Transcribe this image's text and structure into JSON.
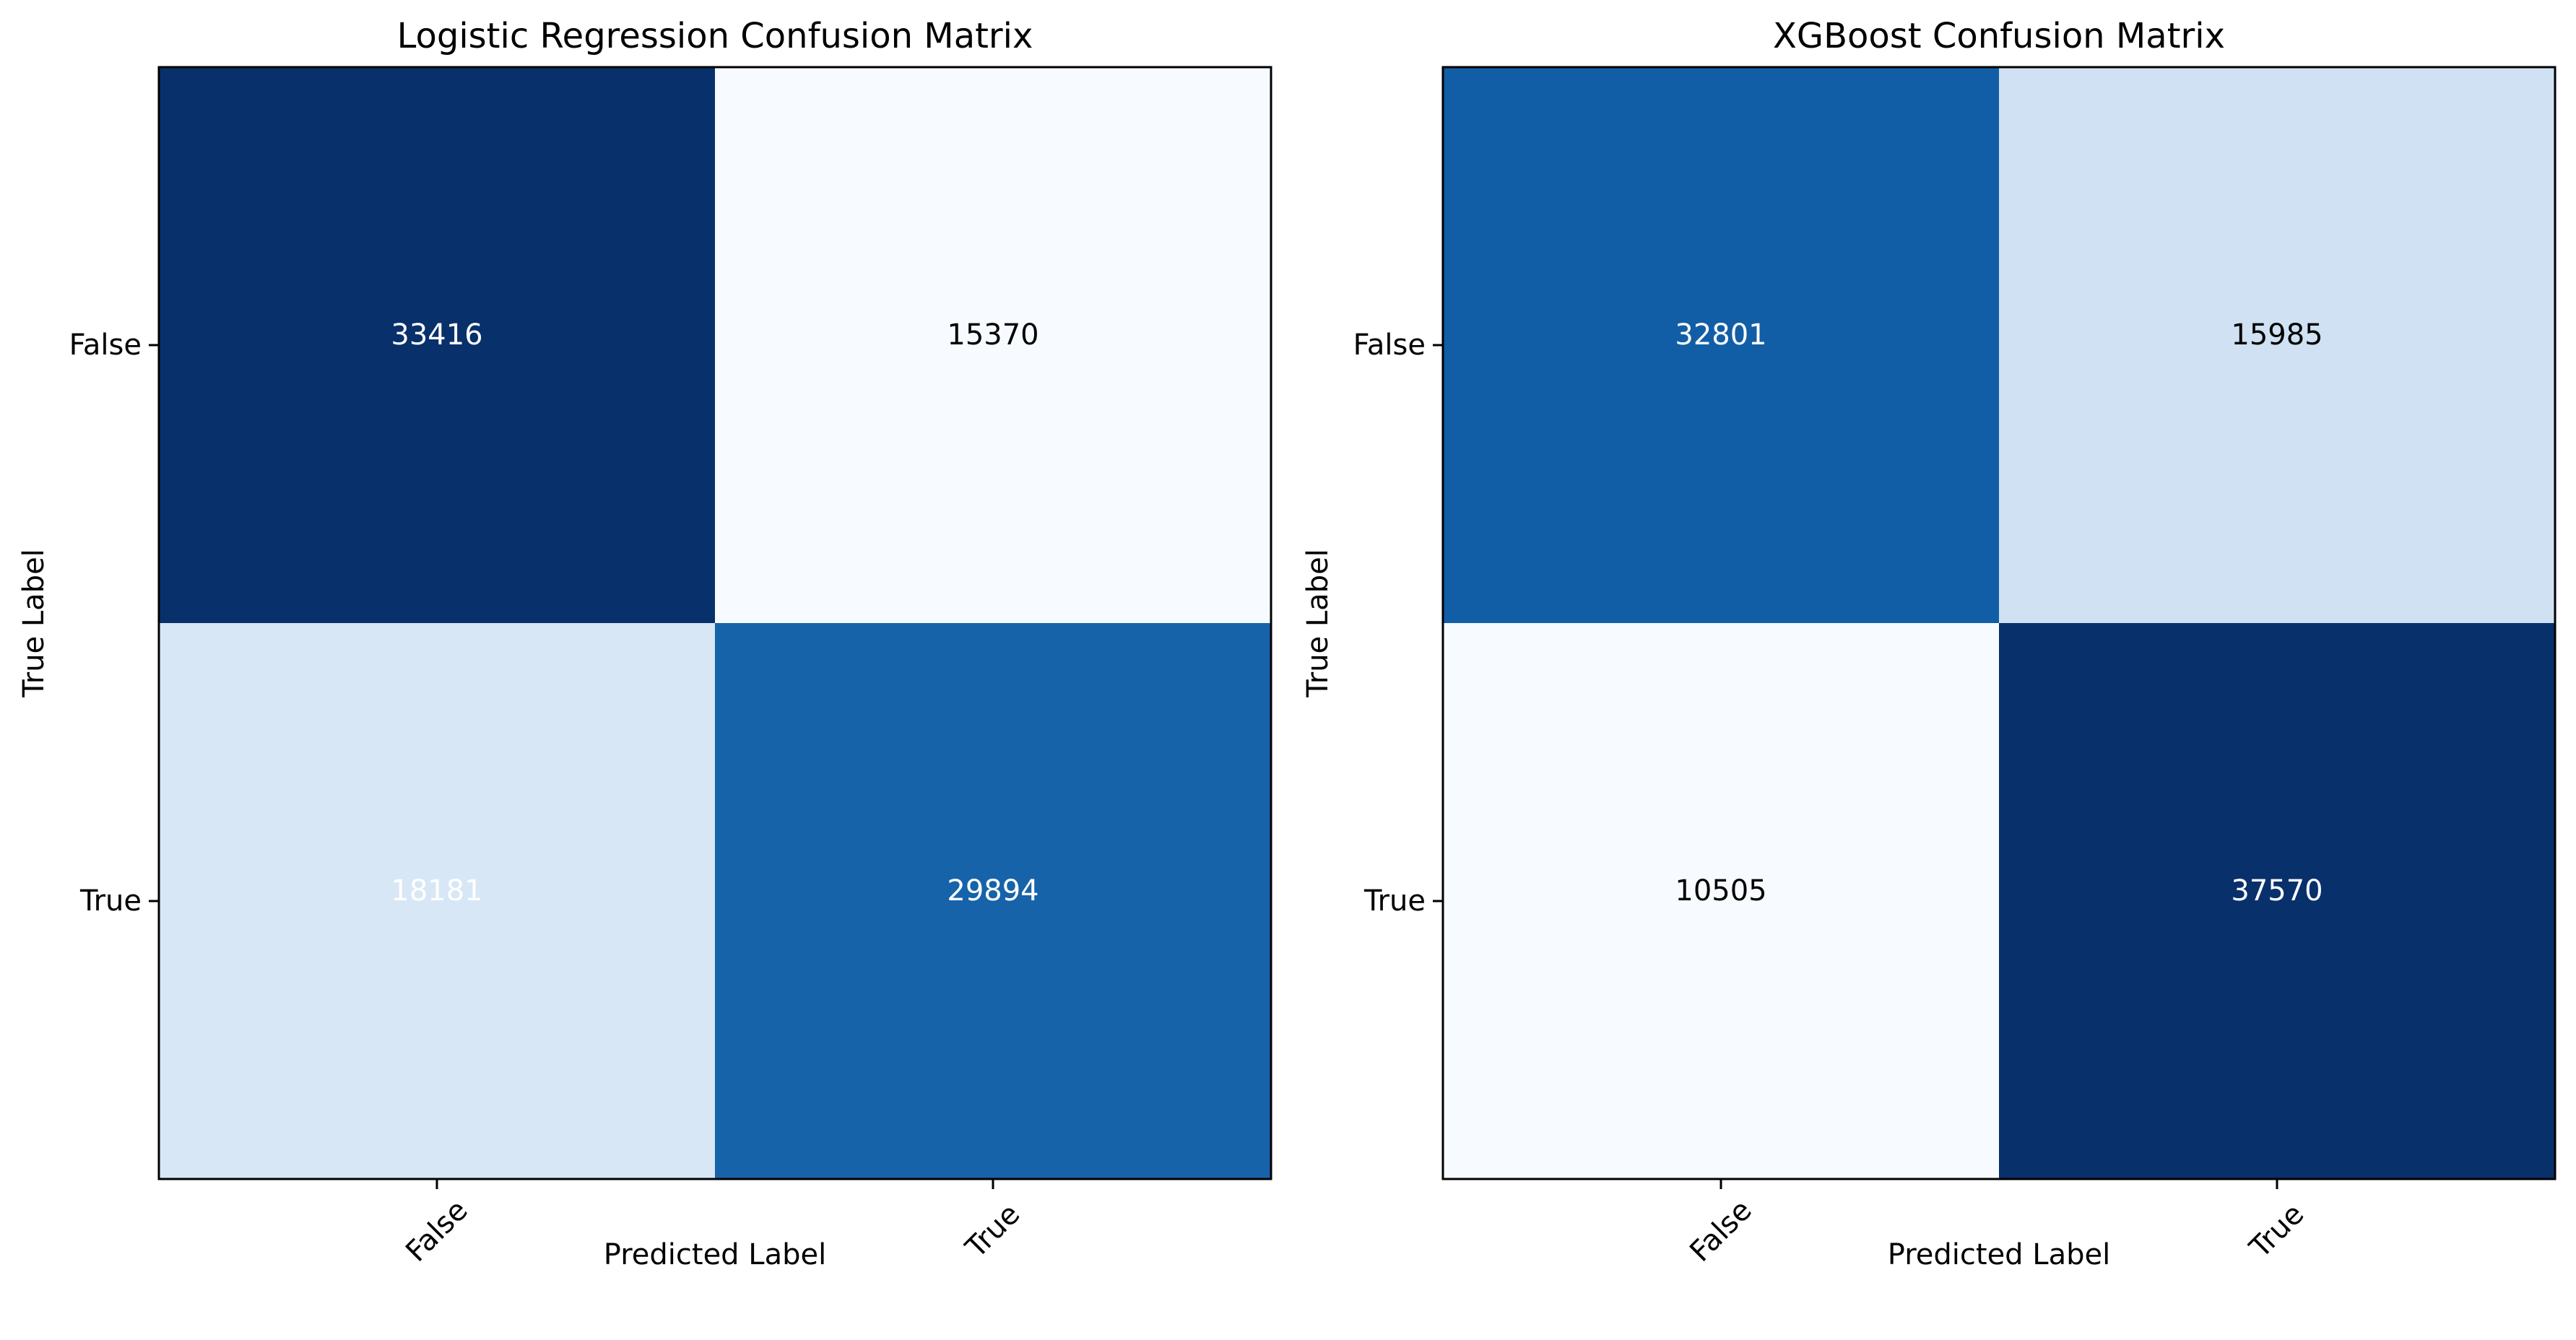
{
  "chart_data": [
    {
      "type": "heatmap",
      "title": "Logistic Regression Confusion Matrix",
      "xlabel": "Predicted Label",
      "ylabel": "True Label",
      "x_categories": [
        "False",
        "True"
      ],
      "y_categories": [
        "False",
        "True"
      ],
      "matrix": [
        [
          33416,
          15370
        ],
        [
          18181,
          29894
        ]
      ],
      "colormap": "Blues",
      "grid": false
    },
    {
      "type": "heatmap",
      "title": "XGBoost Confusion Matrix",
      "xlabel": "Predicted Label",
      "ylabel": "True Label",
      "x_categories": [
        "False",
        "True"
      ],
      "y_categories": [
        "False",
        "True"
      ],
      "matrix": [
        [
          32801,
          15985
        ],
        [
          10505,
          37570
        ]
      ],
      "colormap": "Blues",
      "grid": false
    }
  ]
}
